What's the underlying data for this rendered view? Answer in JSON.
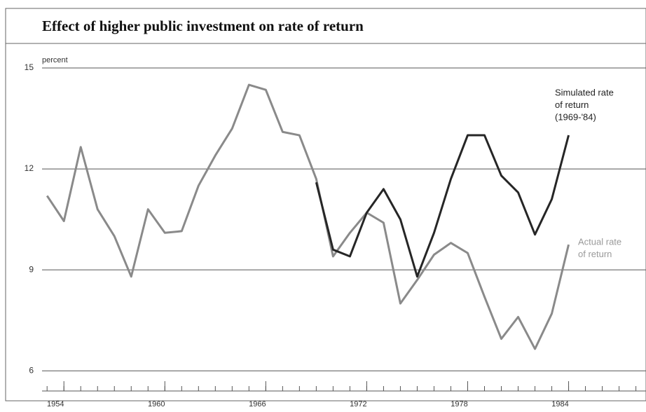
{
  "chart_data": {
    "type": "line",
    "title": "Effect of higher public investment on rate of return",
    "y_unit": "percent",
    "x": [
      1953,
      1954,
      1955,
      1956,
      1957,
      1958,
      1959,
      1960,
      1961,
      1962,
      1963,
      1964,
      1965,
      1966,
      1967,
      1968,
      1969,
      1970,
      1971,
      1972,
      1973,
      1974,
      1975,
      1976,
      1977,
      1978,
      1979,
      1980,
      1981,
      1982,
      1983,
      1984
    ],
    "series": [
      {
        "name": "Actual rate of return",
        "color": "#8a8a8a",
        "values": [
          11.2,
          10.45,
          12.65,
          10.8,
          10.0,
          8.8,
          10.8,
          10.1,
          10.15,
          11.5,
          12.4,
          13.2,
          14.5,
          14.35,
          13.1,
          13.0,
          11.7,
          9.4,
          10.1,
          10.7,
          10.4,
          8.0,
          8.7,
          9.45,
          9.8,
          9.5,
          8.2,
          6.95,
          7.6,
          6.65,
          7.7,
          9.75
        ]
      },
      {
        "name": "Simulated rate of return (1969-'84)",
        "color": "#262626",
        "values": [
          null,
          null,
          null,
          null,
          null,
          null,
          null,
          null,
          null,
          null,
          null,
          null,
          null,
          null,
          null,
          null,
          11.6,
          9.6,
          9.4,
          10.7,
          11.4,
          10.5,
          8.8,
          10.1,
          11.7,
          13.0,
          13.0,
          11.8,
          11.3,
          10.05,
          11.1,
          13.0
        ]
      }
    ],
    "annotations": [
      {
        "lines": [
          "Simulated rate",
          "of return",
          "(1969-'84)"
        ],
        "color": "#222"
      },
      {
        "lines": [
          "Actual rate",
          "of return"
        ],
        "color": "#9a9a9a"
      }
    ],
    "xlim": [
      1952.7,
      1988.6
    ],
    "xticks": [
      1954,
      1960,
      1966,
      1972,
      1978,
      1984
    ],
    "xminorticks": [
      1953,
      1954,
      1955,
      1956,
      1957,
      1958,
      1959,
      1960,
      1961,
      1962,
      1963,
      1964,
      1965,
      1966,
      1967,
      1968,
      1969,
      1970,
      1971,
      1972,
      1973,
      1974,
      1975,
      1976,
      1977,
      1978,
      1979,
      1980,
      1981,
      1982,
      1983,
      1984,
      1985,
      1986,
      1987,
      1988
    ],
    "ylim": [
      5.4,
      15
    ],
    "yticks": [
      6,
      9,
      12,
      15
    ],
    "grid": true
  }
}
